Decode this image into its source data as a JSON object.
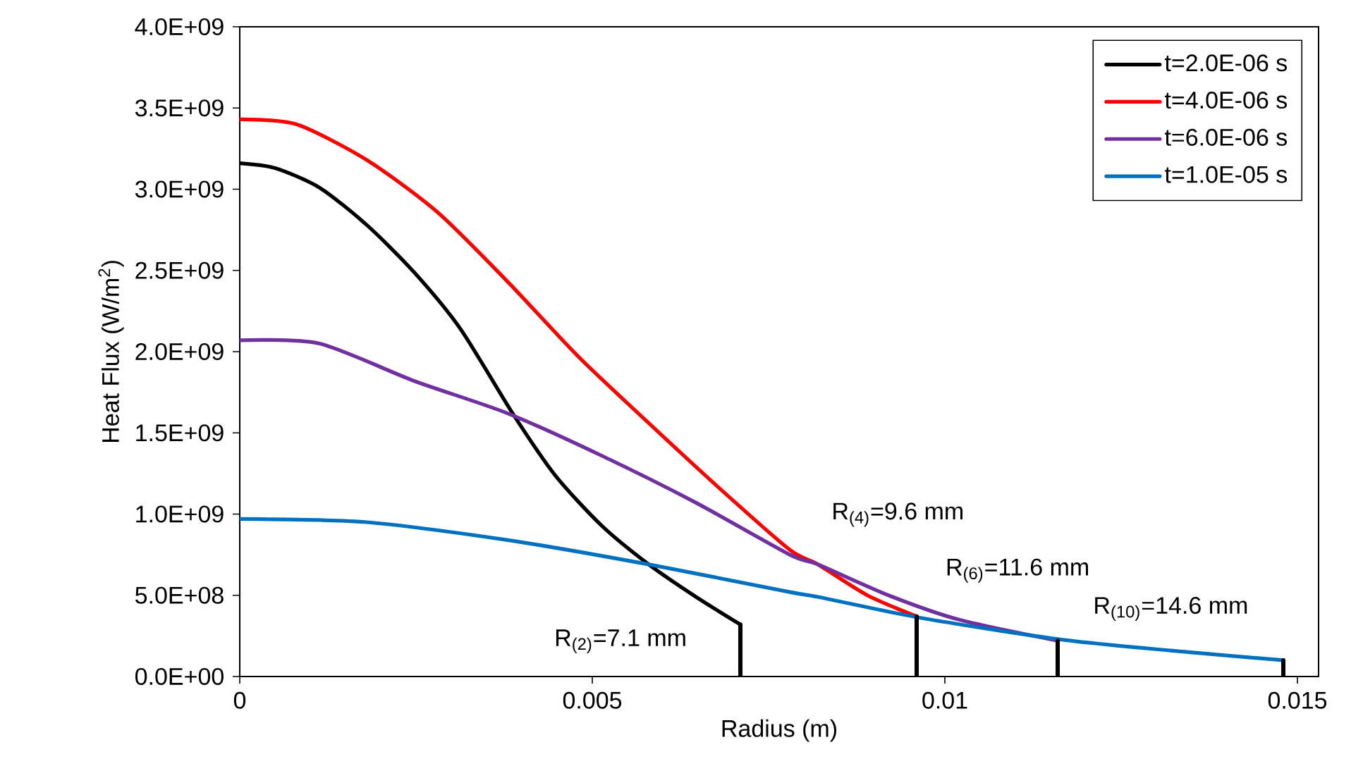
{
  "chart_data": {
    "type": "line",
    "xlabel": "Radius (m)",
    "ylabel": "Heat Flux (W/m$^{2}$)",
    "xlim": [
      0,
      0.0153
    ],
    "xticks": [
      0,
      0.005,
      0.01,
      0.015
    ],
    "ylim": [
      0,
      4000000000
    ],
    "yticks": [
      {
        "value": 0,
        "label": "0.0E+00"
      },
      {
        "value": 500000000,
        "label": "5.0E+08"
      },
      {
        "value": 1000000000,
        "label": "1.0E+09"
      },
      {
        "value": 1500000000,
        "label": "1.5E+09"
      },
      {
        "value": 2000000000,
        "label": "2.0E+09"
      },
      {
        "value": 2500000000,
        "label": "2.5E+09"
      },
      {
        "value": 3000000000,
        "label": "3.0E+09"
      },
      {
        "value": 3500000000,
        "label": "3.5E+09"
      },
      {
        "value": 4000000000,
        "label": "4.0E+09"
      }
    ],
    "legend": "top right",
    "marker": "none",
    "line_style": "solid",
    "series": [
      {
        "name": "t=2.0E-06 s",
        "color": "#000000",
        "x": [
          0,
          0.0005,
          0.00113,
          0.0018,
          0.00247,
          0.00313,
          0.00387,
          0.00447,
          0.00513,
          0.0058,
          0.00647,
          0.0071
        ],
        "values": [
          3160000000,
          3130000000,
          3010000000,
          2780000000,
          2490000000,
          2140000000,
          1620000000,
          1240000000,
          930000000,
          690000000,
          490000000,
          320000000
        ]
      },
      {
        "name": "t=4.0E-06 s",
        "color": "#ff0000",
        "x": [
          0,
          0.0008,
          0.0018,
          0.0028,
          0.0038,
          0.0048,
          0.0058,
          0.0068,
          0.0078,
          0.0082,
          0.0089,
          0.0096
        ],
        "values": [
          3430000000,
          3400000000,
          3180000000,
          2860000000,
          2430000000,
          1970000000,
          1560000000,
          1160000000,
          780000000,
          690000000,
          500000000,
          370000000
        ]
      },
      {
        "name": "t=6.0E-06 s",
        "color": "#7030a0",
        "x": [
          0,
          0.00113,
          0.00247,
          0.0038,
          0.00513,
          0.00647,
          0.0078,
          0.0082,
          0.0092,
          0.0102,
          0.0116
        ],
        "values": [
          2070000000,
          2050000000,
          1820000000,
          1620000000,
          1360000000,
          1070000000,
          750000000,
          690000000,
          500000000,
          350000000,
          220000000
        ]
      },
      {
        "name": "t=1.0E-05 s",
        "color": "#0070c0",
        "x": [
          0,
          0.0018,
          0.0038,
          0.0058,
          0.0078,
          0.0082,
          0.00967,
          0.0116,
          0.0132,
          0.0148
        ],
        "values": [
          970000000,
          950000000,
          840000000,
          690000000,
          520000000,
          490000000,
          360000000,
          230000000,
          160000000,
          100000000
        ]
      },
      {
        "type": "line",
        "color": "#000000",
        "x": [
          0.0071,
          0.0071
        ],
        "values": [
          0,
          320000000
        ]
      },
      {
        "type": "line",
        "color": "#000000",
        "x": [
          0.0096,
          0.0096
        ],
        "values": [
          0,
          370000000
        ]
      },
      {
        "type": "line",
        "color": "#000000",
        "x": [
          0.0116,
          0.0116
        ],
        "values": [
          0,
          220000000
        ]
      },
      {
        "type": "line",
        "color": "#000000",
        "x": [
          0.0148,
          0.0148
        ],
        "values": [
          0,
          100000000
        ]
      }
    ],
    "annotations": [
      "R$_{(2)}$=7.1 mm",
      "R$_{(4)}$=9.6 mm",
      "R$_{(6)}$=11.6 mm",
      "R$_{(10)}$=14.6 mm"
    ]
  }
}
